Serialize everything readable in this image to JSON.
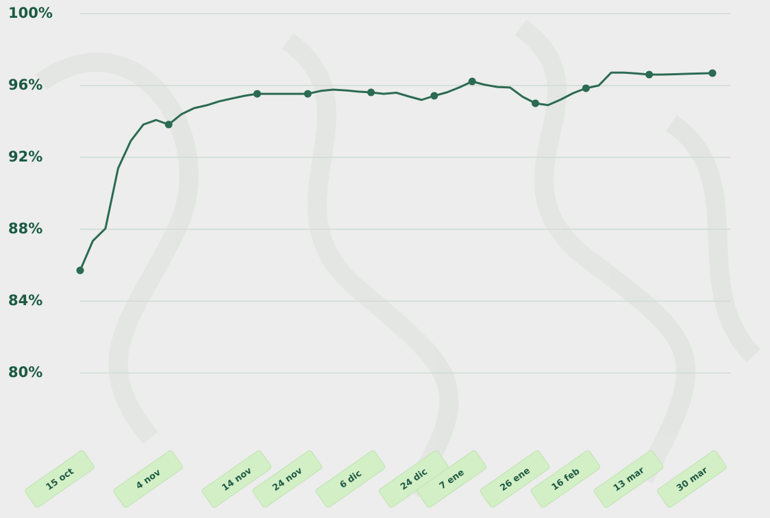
{
  "chart_data": {
    "type": "line",
    "categories": [
      "15 oct",
      null,
      null,
      null,
      null,
      null,
      null,
      "4 nov",
      null,
      null,
      null,
      null,
      null,
      null,
      "14 nov",
      null,
      null,
      null,
      "24 nov",
      null,
      null,
      null,
      null,
      "6 dic",
      null,
      null,
      null,
      null,
      "24 dic",
      null,
      null,
      "7 ene",
      null,
      null,
      null,
      null,
      "26 ene",
      null,
      null,
      null,
      "16 feb",
      null,
      null,
      null,
      null,
      "13 mar",
      null,
      null,
      null,
      null,
      "30 mar"
    ],
    "series": [
      {
        "color": "#2b6a53",
        "values": [
          85.71,
          87.35,
          88.04,
          91.39,
          92.91,
          93.83,
          94.08,
          93.83,
          94.4,
          94.74,
          94.9,
          95.12,
          95.28,
          95.43,
          95.54,
          95.54,
          95.54,
          95.54,
          95.54,
          95.7,
          95.77,
          95.73,
          95.66,
          95.62,
          95.54,
          95.6,
          95.39,
          95.2,
          95.43,
          95.62,
          95.9,
          96.23,
          96.04,
          95.92,
          95.89,
          95.37,
          95.01,
          94.91,
          95.22,
          95.58,
          95.85,
          96.0,
          96.72,
          96.72,
          96.67,
          96.61,
          96.61,
          96.63,
          96.65,
          96.67,
          96.69
        ]
      }
    ],
    "ylim": [
      76,
      100
    ],
    "yticks": [
      {
        "value": 80,
        "label": "80%"
      },
      {
        "value": 84,
        "label": "84%"
      },
      {
        "value": 88,
        "label": "88%"
      },
      {
        "value": 92,
        "label": "92%"
      },
      {
        "value": 96,
        "label": "96%"
      },
      {
        "value": 100,
        "label": "100%"
      }
    ],
    "grid": true
  }
}
